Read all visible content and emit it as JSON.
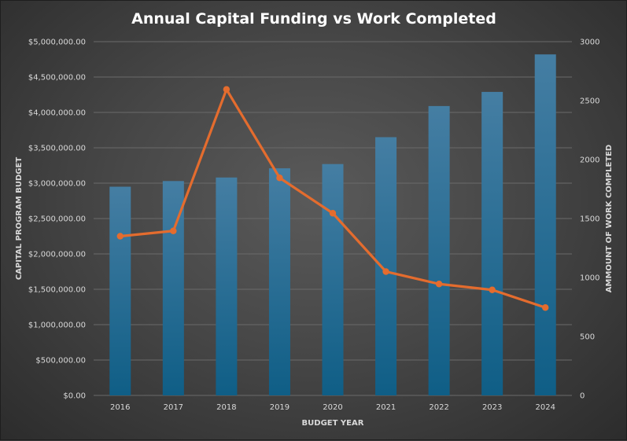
{
  "chart_data": {
    "type": "bar",
    "title": "Annual Capital Funding vs Work Completed",
    "xlabel": "BUDGET YEAR",
    "ylabel": "CAPITAL PROGRAM BUDGET",
    "y2label": "AMMOUNT OF WORK COMPLETED",
    "categories": [
      "2016",
      "2017",
      "2018",
      "2019",
      "2020",
      "2021",
      "2022",
      "2023",
      "2024"
    ],
    "series": [
      {
        "type": "bar",
        "axis": "left",
        "color": "#1b6a91",
        "values": [
          2950000,
          3030000,
          3080000,
          3210000,
          3270000,
          3650000,
          4090000,
          4290000,
          4820000
        ]
      },
      {
        "type": "line",
        "axis": "right",
        "color": "#e46c2e",
        "values": [
          1350,
          1395,
          2595,
          1845,
          1545,
          1050,
          945,
          895,
          745
        ]
      }
    ],
    "ylim": [
      0,
      5000000
    ],
    "y2lim": [
      0,
      3000
    ],
    "yticks": [
      "$0.00",
      "$500,000.00",
      "$1,000,000.00",
      "$1,500,000.00",
      "$2,000,000.00",
      "$2,500,000.00",
      "$3,000,000.00",
      "$3,500,000.00",
      "$4,000,000.00",
      "$4,500,000.00",
      "$5,000,000.00"
    ],
    "y2ticks": [
      "0",
      "500",
      "1000",
      "1500",
      "2000",
      "2500",
      "3000"
    ],
    "grid": true,
    "legend": "none"
  }
}
